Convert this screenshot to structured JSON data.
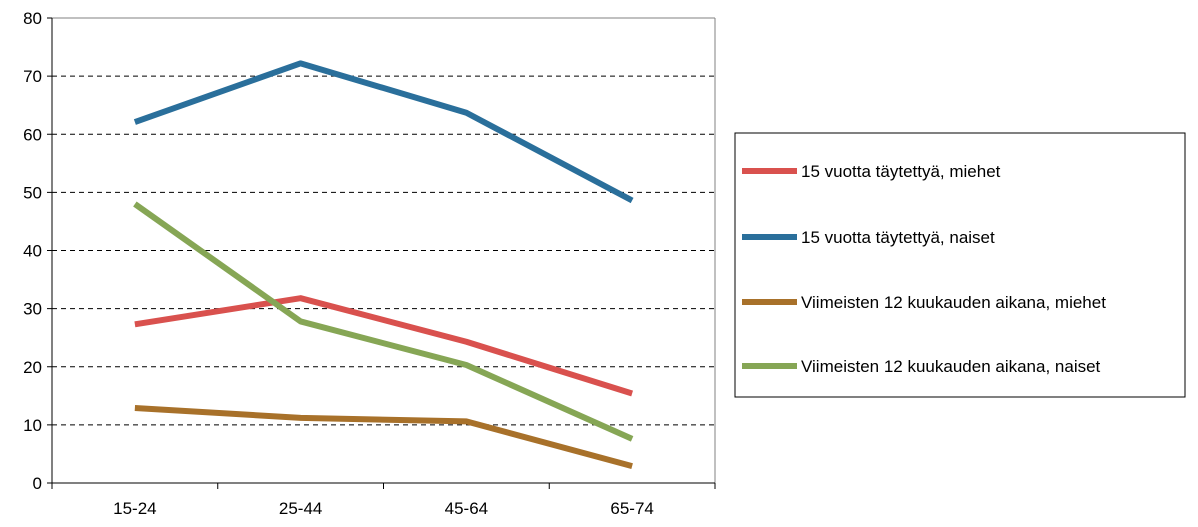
{
  "chart_data": {
    "type": "line",
    "title": "",
    "xlabel": "",
    "ylabel": "",
    "categories": [
      "15-24",
      "25-44",
      "45-64",
      "65-74"
    ],
    "ylim": [
      0,
      80
    ],
    "yticks": [
      0,
      10,
      20,
      30,
      40,
      50,
      60,
      70,
      80
    ],
    "grid": "dashed horizontal",
    "legend_position": "right",
    "series": [
      {
        "name": "15 vuotta täytettyä, miehet",
        "color": "#d9514e",
        "values": [
          27.3,
          31.8,
          24.3,
          15.4
        ]
      },
      {
        "name": "15 vuotta täytettyä, naiset",
        "color": "#2a6f9b",
        "values": [
          62.1,
          72.2,
          63.7,
          48.6
        ]
      },
      {
        "name": "Viimeisten 12 kuukauden aikana, miehet",
        "color": "#a8712a",
        "values": [
          12.9,
          11.2,
          10.6,
          2.9
        ]
      },
      {
        "name": "Viimeisten 12 kuukauden aikana, naiset",
        "color": "#86a655",
        "values": [
          48.0,
          27.8,
          20.3,
          7.6
        ]
      }
    ]
  }
}
